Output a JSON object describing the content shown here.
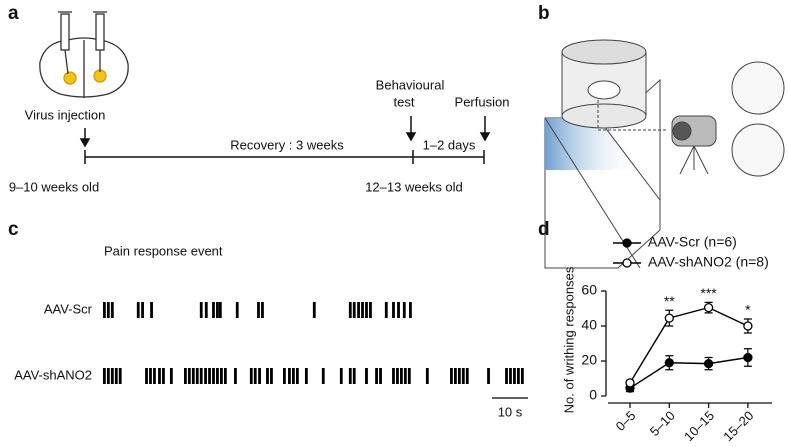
{
  "panel_a": {
    "label": "a",
    "virus_injection": "Virus injection",
    "behavioural_test": [
      "Behavioural",
      "test"
    ],
    "perfusion": "Perfusion",
    "recovery": "Recovery : 3 weeks",
    "interval": "1–2 days",
    "start_age": "9–10 weeks old",
    "end_age": "12–13 weeks old"
  },
  "panel_b": {
    "label": "b"
  },
  "panel_c": {
    "label": "c",
    "title": "Pain response event",
    "rows": [
      {
        "name": "AAV-Scr",
        "events": [
          0,
          1.1,
          2.2,
          9.4,
          10.6,
          13.1,
          26.9,
          28.3,
          30.3,
          31.4,
          32.2,
          36.9,
          42.8,
          43.9,
          58.3,
          68.3,
          69.4,
          70.6,
          71.7,
          72.8,
          73.9,
          78.3,
          80.3,
          81.7,
          83.3,
          85
        ]
      },
      {
        "name": "AAV-shANO2",
        "events": [
          0,
          1.1,
          2.2,
          3.3,
          4.4,
          11.7,
          12.8,
          13.9,
          15.3,
          16.4,
          18.6,
          22.5,
          23.6,
          24.7,
          25.8,
          26.9,
          28.1,
          29.2,
          30.3,
          31.4,
          32.5,
          33.6,
          36.4,
          40.8,
          41.9,
          43.1,
          45.3,
          46.4,
          50,
          51.4,
          52.5,
          53.6,
          56.1,
          60.8,
          65.8,
          68.3,
          69.4,
          72.8,
          75.6,
          76.7,
          80.3,
          81.4,
          82.5,
          83.6,
          84.7,
          89.7,
          96.4,
          97.5,
          98.6,
          99.7,
          100.8,
          106.7,
          111.7,
          112.8,
          113.9,
          115,
          116.1
        ]
      }
    ],
    "scale_bar": {
      "value": 10,
      "label": "10 s"
    }
  },
  "chart_data": {
    "label": "d",
    "type": "line",
    "categories": [
      "0–5",
      "5–10",
      "10–15",
      "15–20"
    ],
    "series": [
      {
        "name": "AAV-Scr (n=6)",
        "color": "#000000",
        "values": [
          4.5,
          19,
          18.5,
          22
        ],
        "errors": [
          2,
          4,
          3.5,
          5
        ]
      },
      {
        "name": "AAV-shANO2 (n=8)",
        "color": "#ffffff",
        "values": [
          7.5,
          44.5,
          50.5,
          40
        ],
        "errors": [
          1.5,
          4.5,
          3,
          4
        ]
      }
    ],
    "significance": [
      null,
      "**",
      "***",
      "*"
    ],
    "y_label": "No. of writhing responses",
    "ylim": [
      0,
      60
    ],
    "yticks": [
      0,
      20,
      40,
      60
    ]
  }
}
